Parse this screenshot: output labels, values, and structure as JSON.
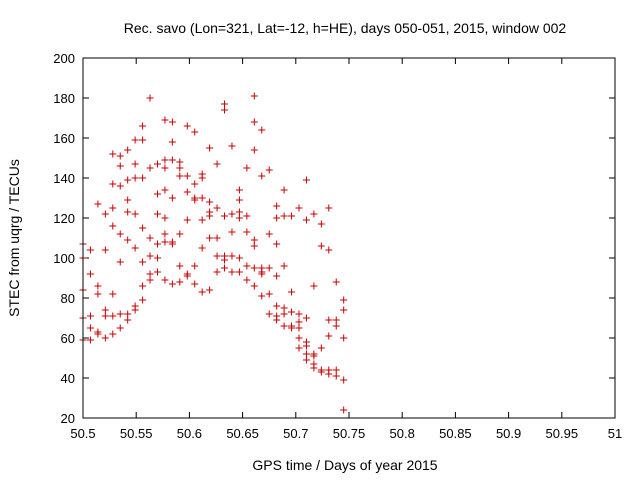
{
  "chart_data": {
    "type": "scatter",
    "title": "Rec. savo (Lon=321, Lat=-12, h=HE), days 050-051, 2015, window 002",
    "xlabel": "GPS time / Days of year 2015",
    "ylabel": "STEC from uqrg / TECUs",
    "xlim": [
      50.5,
      51
    ],
    "ylim": [
      20,
      200
    ],
    "xticks": [
      "50.5",
      "50.55",
      "50.6",
      "50.65",
      "50.7",
      "50.75",
      "50.8",
      "50.85",
      "50.9",
      "50.95",
      "51"
    ],
    "yticks": [
      "20",
      "40",
      "60",
      "80",
      "100",
      "120",
      "140",
      "160",
      "180",
      "200"
    ],
    "grid": false,
    "marker": "plus",
    "color": "#cc0000",
    "points": [
      [
        50.5,
        84
      ],
      [
        50.5,
        70
      ],
      [
        50.5,
        59
      ],
      [
        50.5,
        107
      ],
      [
        50.5,
        100
      ],
      [
        50.507,
        104
      ],
      [
        50.507,
        92
      ],
      [
        50.507,
        71
      ],
      [
        50.507,
        65
      ],
      [
        50.507,
        59
      ],
      [
        50.514,
        127
      ],
      [
        50.514,
        86
      ],
      [
        50.514,
        82
      ],
      [
        50.514,
        63
      ],
      [
        50.514,
        62
      ],
      [
        50.521,
        122
      ],
      [
        50.521,
        104
      ],
      [
        50.521,
        74
      ],
      [
        50.521,
        71
      ],
      [
        50.521,
        60
      ],
      [
        50.528,
        152
      ],
      [
        50.528,
        137
      ],
      [
        50.528,
        125
      ],
      [
        50.528,
        116
      ],
      [
        50.528,
        82
      ],
      [
        50.528,
        71
      ],
      [
        50.528,
        62
      ],
      [
        50.535,
        151
      ],
      [
        50.535,
        146
      ],
      [
        50.535,
        136
      ],
      [
        50.535,
        112
      ],
      [
        50.535,
        98
      ],
      [
        50.535,
        72
      ],
      [
        50.535,
        65
      ],
      [
        50.542,
        154
      ],
      [
        50.542,
        139
      ],
      [
        50.542,
        129
      ],
      [
        50.542,
        123
      ],
      [
        50.542,
        109
      ],
      [
        50.542,
        72
      ],
      [
        50.542,
        69
      ],
      [
        50.549,
        159
      ],
      [
        50.549,
        147
      ],
      [
        50.549,
        140
      ],
      [
        50.549,
        122
      ],
      [
        50.549,
        105
      ],
      [
        50.549,
        76
      ],
      [
        50.549,
        74
      ],
      [
        50.556,
        166
      ],
      [
        50.556,
        159
      ],
      [
        50.556,
        140
      ],
      [
        50.556,
        115
      ],
      [
        50.556,
        98
      ],
      [
        50.556,
        86
      ],
      [
        50.556,
        79
      ],
      [
        50.563,
        180
      ],
      [
        50.563,
        145
      ],
      [
        50.563,
        110
      ],
      [
        50.563,
        101
      ],
      [
        50.563,
        92
      ],
      [
        50.563,
        89
      ],
      [
        50.57,
        147
      ],
      [
        50.57,
        132
      ],
      [
        50.57,
        122
      ],
      [
        50.57,
        107
      ],
      [
        50.57,
        100
      ],
      [
        50.57,
        93
      ],
      [
        50.577,
        169
      ],
      [
        50.577,
        149
      ],
      [
        50.577,
        145
      ],
      [
        50.577,
        134
      ],
      [
        50.577,
        120
      ],
      [
        50.577,
        112
      ],
      [
        50.577,
        108
      ],
      [
        50.577,
        89
      ],
      [
        50.584,
        168
      ],
      [
        50.584,
        158
      ],
      [
        50.584,
        149
      ],
      [
        50.584,
        130
      ],
      [
        50.584,
        108
      ],
      [
        50.584,
        107
      ],
      [
        50.584,
        87
      ],
      [
        50.591,
        148
      ],
      [
        50.591,
        145
      ],
      [
        50.591,
        141
      ],
      [
        50.591,
        112
      ],
      [
        50.591,
        96
      ],
      [
        50.591,
        88
      ],
      [
        50.598,
        166
      ],
      [
        50.598,
        141
      ],
      [
        50.598,
        133
      ],
      [
        50.598,
        119
      ],
      [
        50.598,
        92
      ],
      [
        50.598,
        91
      ],
      [
        50.605,
        163
      ],
      [
        50.605,
        137
      ],
      [
        50.605,
        130
      ],
      [
        50.605,
        129
      ],
      [
        50.605,
        96
      ],
      [
        50.605,
        87
      ],
      [
        50.612,
        142
      ],
      [
        50.612,
        140
      ],
      [
        50.612,
        130
      ],
      [
        50.612,
        119
      ],
      [
        50.612,
        105
      ],
      [
        50.612,
        83
      ],
      [
        50.619,
        155
      ],
      [
        50.619,
        128
      ],
      [
        50.619,
        123
      ],
      [
        50.619,
        121
      ],
      [
        50.619,
        110
      ],
      [
        50.619,
        84
      ],
      [
        50.626,
        147
      ],
      [
        50.626,
        125
      ],
      [
        50.626,
        110
      ],
      [
        50.626,
        101
      ],
      [
        50.626,
        93
      ],
      [
        50.633,
        177
      ],
      [
        50.633,
        174
      ],
      [
        50.633,
        121
      ],
      [
        50.633,
        101
      ],
      [
        50.633,
        99
      ],
      [
        50.633,
        95
      ],
      [
        50.64,
        156
      ],
      [
        50.64,
        122
      ],
      [
        50.64,
        113
      ],
      [
        50.64,
        101
      ],
      [
        50.64,
        93
      ],
      [
        50.647,
        134
      ],
      [
        50.647,
        129
      ],
      [
        50.647,
        123
      ],
      [
        50.647,
        120
      ],
      [
        50.647,
        100
      ],
      [
        50.647,
        93
      ],
      [
        50.654,
        145
      ],
      [
        50.654,
        121
      ],
      [
        50.654,
        113
      ],
      [
        50.654,
        96
      ],
      [
        50.654,
        89
      ],
      [
        50.661,
        181
      ],
      [
        50.661,
        168
      ],
      [
        50.661,
        154
      ],
      [
        50.661,
        109
      ],
      [
        50.661,
        106
      ],
      [
        50.661,
        95
      ],
      [
        50.661,
        86
      ],
      [
        50.668,
        164
      ],
      [
        50.668,
        141
      ],
      [
        50.668,
        95
      ],
      [
        50.668,
        93
      ],
      [
        50.668,
        92
      ],
      [
        50.668,
        81
      ],
      [
        50.675,
        144
      ],
      [
        50.675,
        112
      ],
      [
        50.675,
        95
      ],
      [
        50.675,
        82
      ],
      [
        50.675,
        72
      ],
      [
        50.682,
        126
      ],
      [
        50.682,
        120
      ],
      [
        50.682,
        107
      ],
      [
        50.682,
        91
      ],
      [
        50.682,
        76
      ],
      [
        50.682,
        71
      ],
      [
        50.682,
        69
      ],
      [
        50.689,
        134
      ],
      [
        50.689,
        121
      ],
      [
        50.689,
        96
      ],
      [
        50.689,
        75
      ],
      [
        50.689,
        72
      ],
      [
        50.689,
        66
      ],
      [
        50.696,
        121
      ],
      [
        50.696,
        83
      ],
      [
        50.696,
        73
      ],
      [
        50.696,
        66
      ],
      [
        50.696,
        65
      ],
      [
        50.703,
        125
      ],
      [
        50.703,
        72
      ],
      [
        50.703,
        68
      ],
      [
        50.703,
        65
      ],
      [
        50.703,
        60
      ],
      [
        50.703,
        55
      ],
      [
        50.71,
        139
      ],
      [
        50.71,
        119
      ],
      [
        50.71,
        70
      ],
      [
        50.71,
        58
      ],
      [
        50.71,
        56
      ],
      [
        50.71,
        52
      ],
      [
        50.71,
        49
      ],
      [
        50.717,
        122
      ],
      [
        50.717,
        86
      ],
      [
        50.717,
        52
      ],
      [
        50.717,
        51
      ],
      [
        50.717,
        47
      ],
      [
        50.717,
        45
      ],
      [
        50.724,
        117
      ],
      [
        50.724,
        106
      ],
      [
        50.724,
        55
      ],
      [
        50.724,
        44
      ],
      [
        50.724,
        43
      ],
      [
        50.731,
        125
      ],
      [
        50.731,
        104
      ],
      [
        50.731,
        69
      ],
      [
        50.731,
        61
      ],
      [
        50.731,
        44
      ],
      [
        50.731,
        42
      ],
      [
        50.738,
        88
      ],
      [
        50.738,
        69
      ],
      [
        50.738,
        66
      ],
      [
        50.738,
        44
      ],
      [
        50.738,
        41
      ],
      [
        50.745,
        79
      ],
      [
        50.745,
        74
      ],
      [
        50.745,
        60
      ],
      [
        50.745,
        39
      ],
      [
        50.745,
        24
      ]
    ]
  }
}
